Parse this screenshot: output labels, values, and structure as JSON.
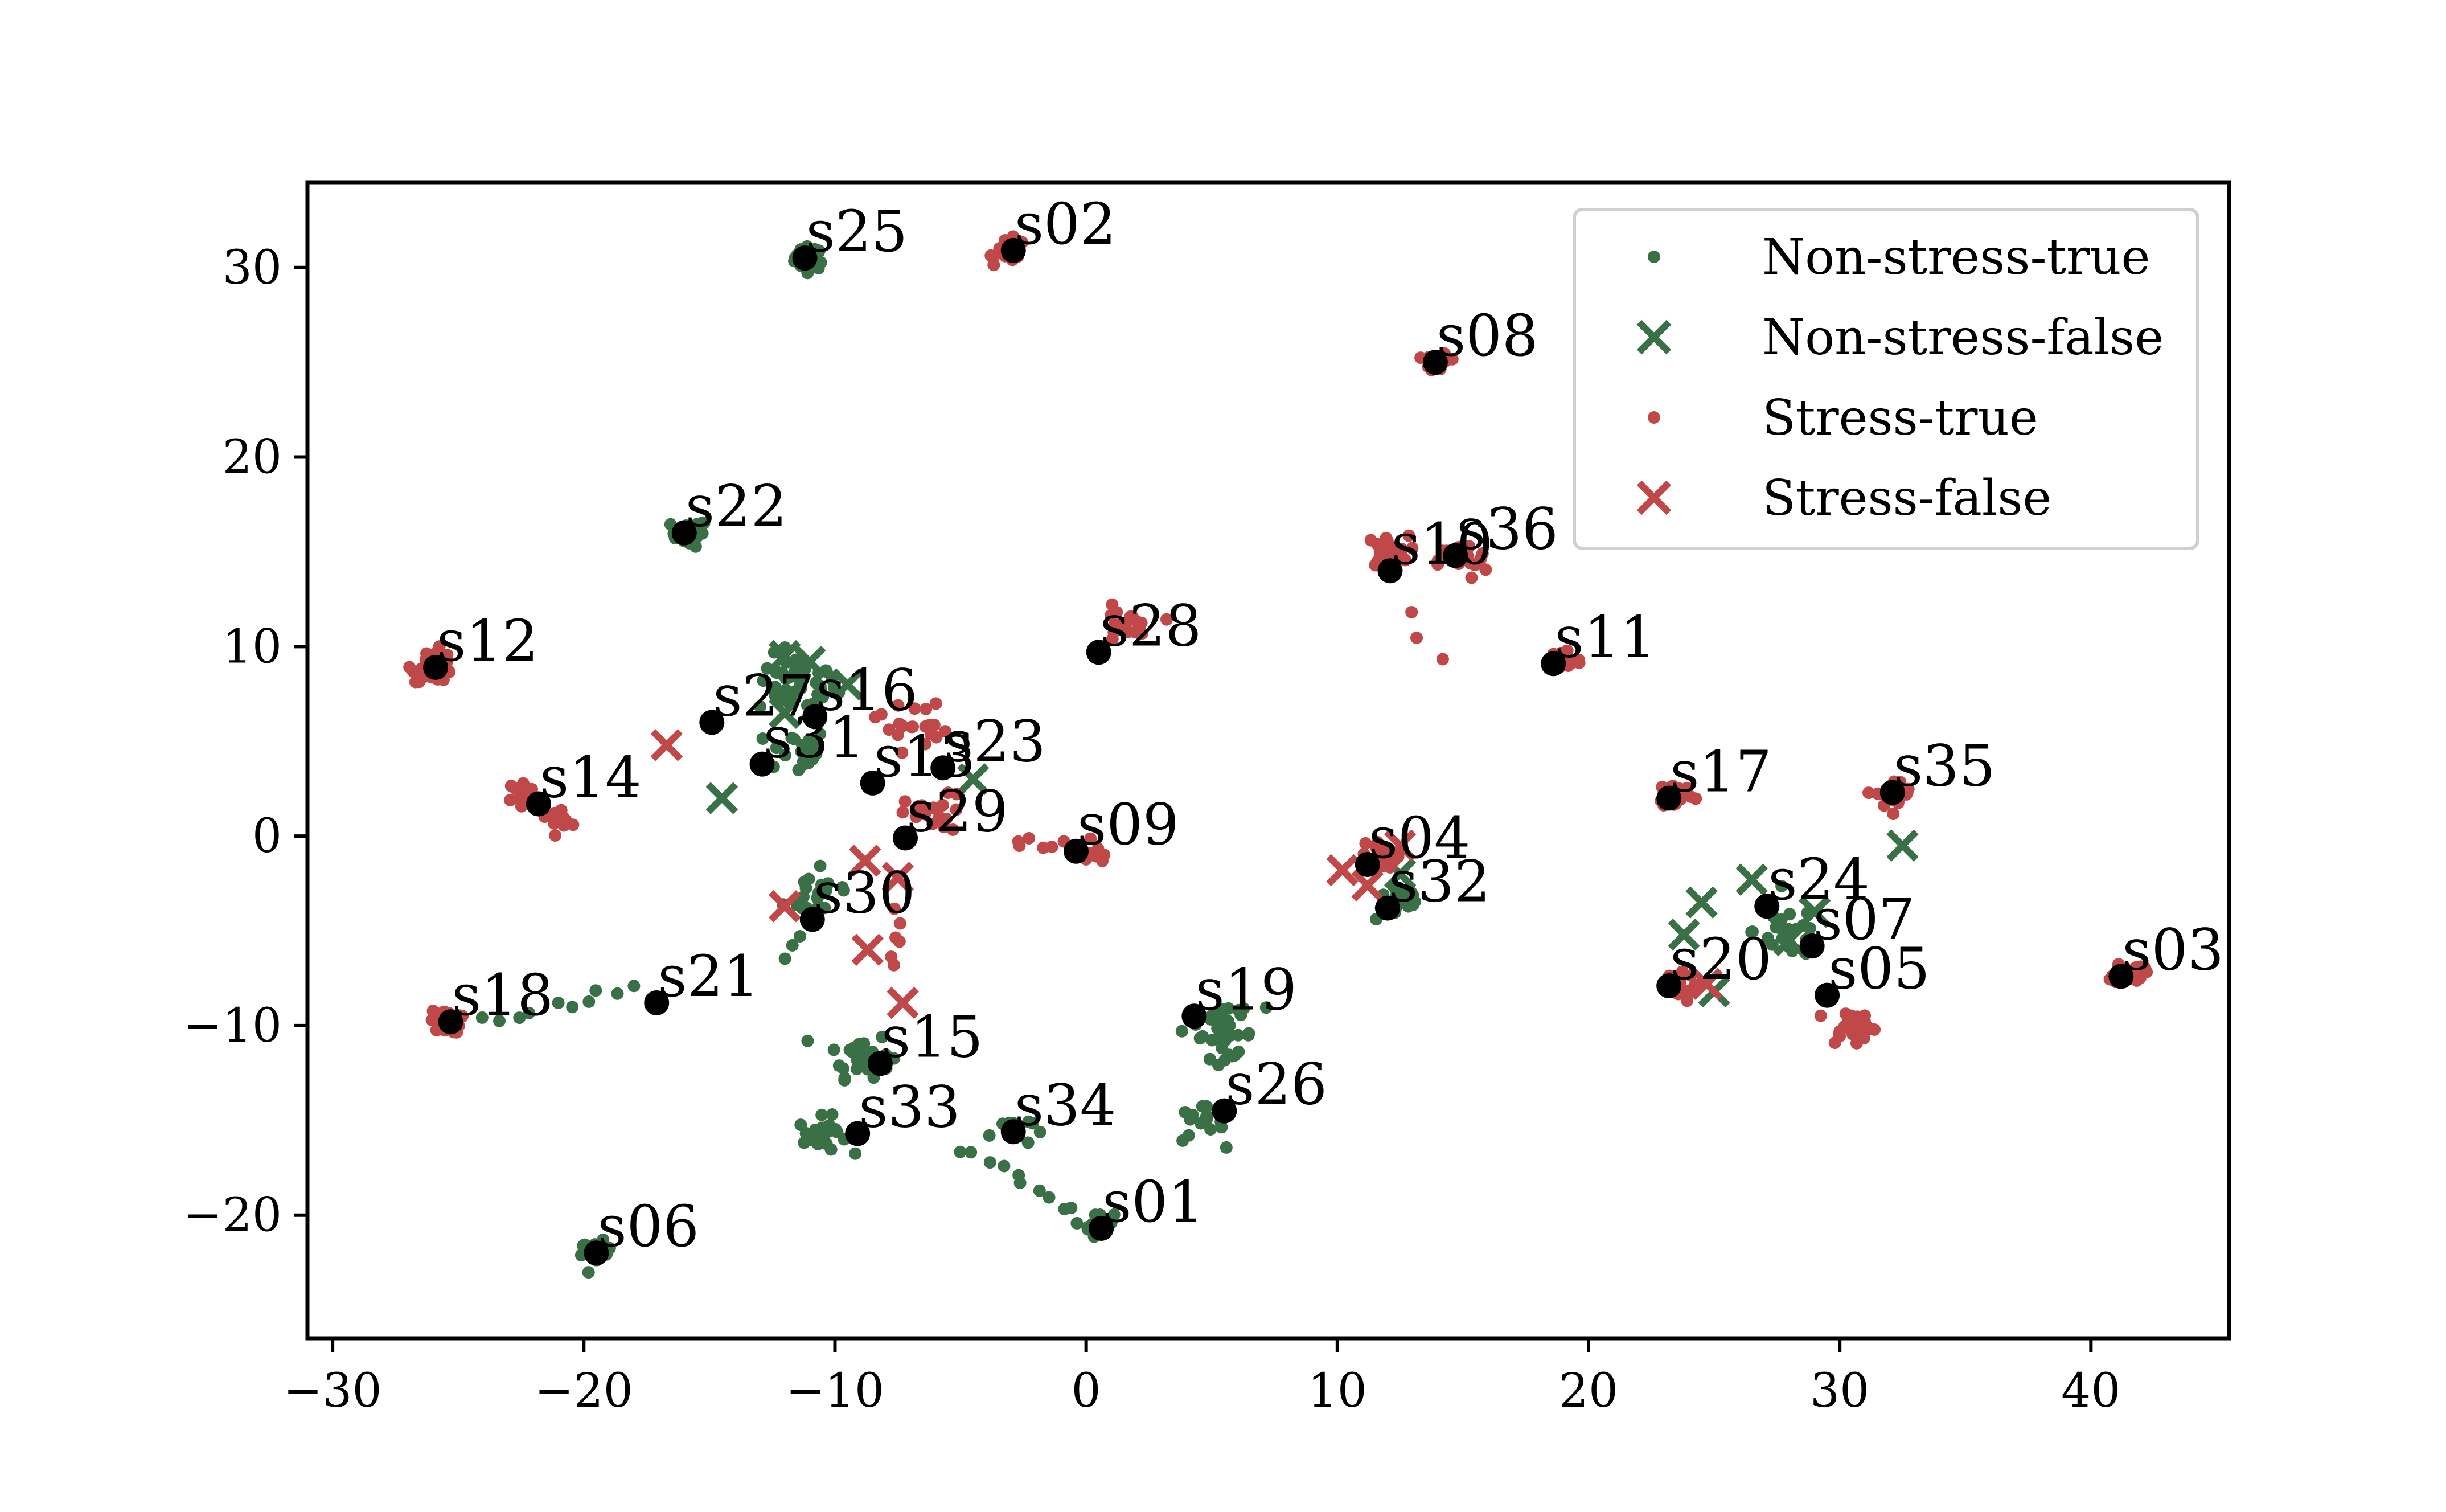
{
  "chart_data": {
    "type": "scatter",
    "title": "",
    "xlabel": "",
    "ylabel": "",
    "xlim": [
      -31,
      45.5
    ],
    "ylim": [
      -26.5,
      34.5
    ],
    "xticks": [
      -30,
      -20,
      -10,
      0,
      10,
      20,
      30,
      40
    ],
    "yticks": [
      -20,
      -10,
      0,
      10,
      20,
      30
    ],
    "xtick_labels": [
      "−30",
      "−20",
      "−10",
      "0",
      "10",
      "20",
      "30",
      "40"
    ],
    "ytick_labels": [
      "−20",
      "−10",
      "0",
      "10",
      "20",
      "30"
    ],
    "grid": false,
    "legend_position": "top-right",
    "colors": {
      "non_stress": "#3a7045",
      "stress": "#c04848",
      "centroid": "#000000"
    },
    "series": [
      {
        "name": "Non-stress-true",
        "marker": "dot",
        "color": "#3a7045",
        "clusters": [
          {
            "x": -11,
            "y": 30.5,
            "spread": 0.5,
            "n": 40
          },
          {
            "x": -15.8,
            "y": 16,
            "spread": 0.6,
            "n": 25
          },
          {
            "x": -11.5,
            "y": 8,
            "spread": 1.3,
            "n": 50
          },
          {
            "x": -11.5,
            "y": 4.5,
            "spread": 1.0,
            "n": 25
          },
          {
            "x": -10.5,
            "y": -3,
            "spread": 1.2,
            "n": 20
          },
          {
            "x": -9,
            "y": -11.5,
            "spread": 1.0,
            "n": 30
          },
          {
            "x": -10.5,
            "y": -15.8,
            "spread": 0.8,
            "n": 25
          },
          {
            "x": -3,
            "y": -15.5,
            "spread": 0.7,
            "n": 15
          },
          {
            "x": 0.5,
            "y": -20.5,
            "spread": 0.5,
            "n": 25
          },
          {
            "x": -19.5,
            "y": -22,
            "spread": 0.5,
            "n": 25
          },
          {
            "x": 5.5,
            "y": -10.5,
            "spread": 1.0,
            "n": 30
          },
          {
            "x": 4.5,
            "y": -15.2,
            "spread": 0.8,
            "n": 15
          },
          {
            "x": 12.5,
            "y": -3.5,
            "spread": 0.8,
            "n": 25
          },
          {
            "x": 28,
            "y": -5,
            "spread": 1.2,
            "n": 30
          }
        ],
        "trails": [
          {
            "from": [
              -24,
              -10
            ],
            "to": [
              -18,
              -8
            ],
            "n": 10
          },
          {
            "from": [
              -5,
              -16.5
            ],
            "to": [
              -0.5,
              -20
            ],
            "n": 10
          },
          {
            "from": [
              4,
              -10
            ],
            "to": [
              7,
              -9
            ],
            "n": 8
          },
          {
            "from": [
              -12,
              -6.5
            ],
            "to": [
              -10.5,
              -2
            ],
            "n": 8
          }
        ]
      },
      {
        "name": "Non-stress-false",
        "marker": "x",
        "color": "#3a7045",
        "points": [
          [
            -12,
            9.5
          ],
          [
            -11,
            9.2
          ],
          [
            -9.5,
            8
          ],
          [
            -12,
            6.5
          ],
          [
            -14.5,
            2
          ],
          [
            -4.5,
            3
          ],
          [
            12.5,
            -2
          ],
          [
            24.5,
            -3.5
          ],
          [
            26.5,
            -2.3
          ],
          [
            23.8,
            -5.2
          ],
          [
            25,
            -8.2
          ],
          [
            28,
            -5.5
          ],
          [
            32.5,
            -0.5
          ],
          [
            29,
            -4
          ]
        ]
      },
      {
        "name": "Stress-true",
        "marker": "dot",
        "color": "#c04848",
        "clusters": [
          {
            "x": -3,
            "y": 30.9,
            "spread": 0.5,
            "n": 35
          },
          {
            "x": 14,
            "y": 25,
            "spread": 0.4,
            "n": 20
          },
          {
            "x": -26,
            "y": 9,
            "spread": 0.7,
            "n": 35
          },
          {
            "x": -22.5,
            "y": 2.3,
            "spread": 0.5,
            "n": 15
          },
          {
            "x": -21,
            "y": 1,
            "spread": 0.4,
            "n": 12
          },
          {
            "x": 1.5,
            "y": 11,
            "spread": 0.9,
            "n": 20
          },
          {
            "x": 12,
            "y": 15,
            "spread": 0.7,
            "n": 30
          },
          {
            "x": 15,
            "y": 14.5,
            "spread": 0.8,
            "n": 25
          },
          {
            "x": 19,
            "y": 9.3,
            "spread": 0.6,
            "n": 25
          },
          {
            "x": 23.5,
            "y": 2.2,
            "spread": 0.6,
            "n": 25
          },
          {
            "x": 32.2,
            "y": 2.2,
            "spread": 0.6,
            "n": 30
          },
          {
            "x": 41.5,
            "y": -7.2,
            "spread": 0.5,
            "n": 30
          },
          {
            "x": 30.5,
            "y": -10,
            "spread": 0.8,
            "n": 30
          },
          {
            "x": 23.5,
            "y": -8,
            "spread": 0.6,
            "n": 20
          },
          {
            "x": -25.5,
            "y": -9.8,
            "spread": 0.5,
            "n": 35
          },
          {
            "x": 0.3,
            "y": -1,
            "spread": 0.4,
            "n": 15
          },
          {
            "x": -7,
            "y": 6,
            "spread": 1.2,
            "n": 20
          },
          {
            "x": -6,
            "y": 1,
            "spread": 1.0,
            "n": 20
          },
          {
            "x": 12,
            "y": -1,
            "spread": 0.7,
            "n": 15
          }
        ],
        "trails": [
          {
            "from": [
              -3,
              -0.5
            ],
            "to": [
              0,
              -0.5
            ],
            "n": 8
          },
          {
            "from": [
              -7.5,
              -7
            ],
            "to": [
              -7.5,
              -4
            ],
            "n": 6
          },
          {
            "from": [
              12.5,
              12
            ],
            "to": [
              14,
              9
            ],
            "n": 3
          }
        ]
      },
      {
        "name": "Stress-false",
        "marker": "x",
        "color": "#c04848",
        "points": [
          [
            -16.7,
            4.8
          ],
          [
            -8.8,
            -1.3
          ],
          [
            -7.5,
            -2.2
          ],
          [
            -12,
            -3.7
          ],
          [
            -8.7,
            -6
          ],
          [
            -7.3,
            -8.8
          ],
          [
            10.2,
            -1.8
          ],
          [
            11.2,
            -2.6
          ],
          [
            12.5,
            -0.5
          ],
          [
            24.7,
            -7.8
          ]
        ]
      },
      {
        "name": "Centroids",
        "marker": "centroid",
        "color": "#000000",
        "points": [
          {
            "label": "s25",
            "x": -11.2,
            "y": 30.5
          },
          {
            "label": "s02",
            "x": -2.9,
            "y": 30.9
          },
          {
            "label": "s08",
            "x": 13.9,
            "y": 25
          },
          {
            "label": "s22",
            "x": -16,
            "y": 16
          },
          {
            "label": "s10",
            "x": 12.1,
            "y": 14
          },
          {
            "label": "s36",
            "x": 14.7,
            "y": 14.8
          },
          {
            "label": "s12",
            "x": -25.9,
            "y": 8.9
          },
          {
            "label": "s28",
            "x": 0.5,
            "y": 9.7
          },
          {
            "label": "s11",
            "x": 18.6,
            "y": 9.1
          },
          {
            "label": "s27",
            "x": -14.9,
            "y": 6
          },
          {
            "label": "s16",
            "x": -10.8,
            "y": 6.3
          },
          {
            "label": "s31",
            "x": -12.9,
            "y": 3.8
          },
          {
            "label": "s13",
            "x": -8.5,
            "y": 2.8
          },
          {
            "label": "s23",
            "x": -5.7,
            "y": 3.6
          },
          {
            "label": "s14",
            "x": -21.8,
            "y": 1.7
          },
          {
            "label": "s17",
            "x": 23.2,
            "y": 2
          },
          {
            "label": "s35",
            "x": 32.1,
            "y": 2.3
          },
          {
            "label": "s29",
            "x": -7.2,
            "y": -0.1
          },
          {
            "label": "s09",
            "x": -0.4,
            "y": -0.8
          },
          {
            "label": "s04",
            "x": 11.2,
            "y": -1.5
          },
          {
            "label": "s32",
            "x": 12,
            "y": -3.8
          },
          {
            "label": "s30",
            "x": -10.9,
            "y": -4.4
          },
          {
            "label": "s24",
            "x": 27.1,
            "y": -3.7
          },
          {
            "label": "s07",
            "x": 28.9,
            "y": -5.8
          },
          {
            "label": "s20",
            "x": 23.2,
            "y": -7.9
          },
          {
            "label": "s05",
            "x": 29.5,
            "y": -8.4
          },
          {
            "label": "s03",
            "x": 41.2,
            "y": -7.4
          },
          {
            "label": "s18",
            "x": -25.3,
            "y": -9.8
          },
          {
            "label": "s21",
            "x": -17.1,
            "y": -8.8
          },
          {
            "label": "s19",
            "x": 4.3,
            "y": -9.5
          },
          {
            "label": "s15",
            "x": -8.2,
            "y": -12
          },
          {
            "label": "s26",
            "x": 5.5,
            "y": -14.5
          },
          {
            "label": "s33",
            "x": -9.1,
            "y": -15.7
          },
          {
            "label": "s34",
            "x": -2.9,
            "y": -15.6
          },
          {
            "label": "s01",
            "x": 0.6,
            "y": -20.7
          },
          {
            "label": "s06",
            "x": -19.5,
            "y": -22
          }
        ]
      }
    ]
  }
}
